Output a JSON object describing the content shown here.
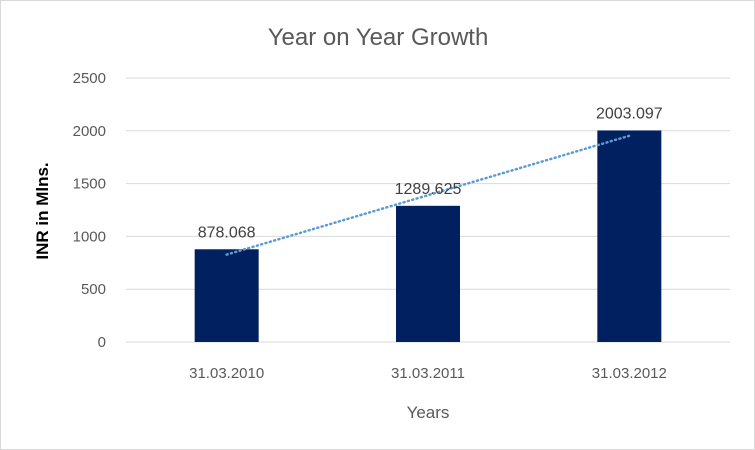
{
  "chart_data": {
    "type": "bar",
    "title": "Year on Year Growth",
    "xlabel": "Years",
    "ylabel": "INR in Mlns.",
    "categories": [
      "31.03.2010",
      "31.03.2011",
      "31.03.2012"
    ],
    "values": [
      878.068,
      1289.625,
      2003.097
    ],
    "data_labels": [
      "878.068",
      "1289.625",
      "2003.097"
    ],
    "ylim": [
      0,
      2500
    ],
    "yticks": [
      0,
      500,
      1000,
      1500,
      2000,
      2500
    ],
    "grid": true,
    "legend": "none",
    "trendline": "linear",
    "colors": {
      "bar": "#002060",
      "trendline": "#5B9BD5",
      "grid": "#d9d9d9"
    }
  }
}
